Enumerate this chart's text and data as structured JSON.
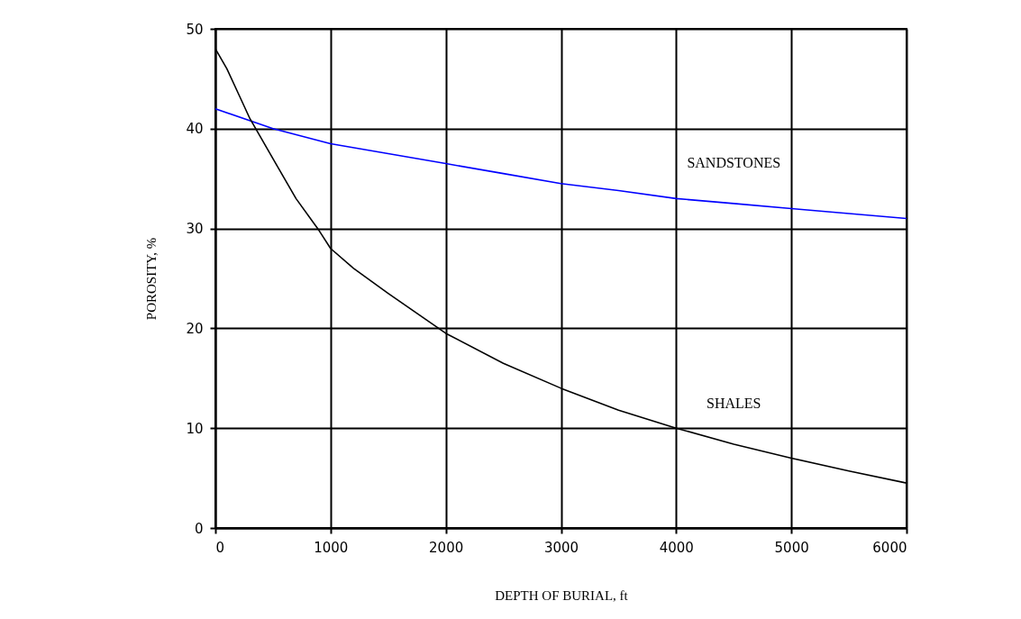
{
  "chart_data": {
    "type": "line",
    "xlabel": "DEPTH OF BURIAL, ft",
    "ylabel": "POROSITY, %",
    "xlim": [
      0,
      6000
    ],
    "ylim": [
      0,
      50
    ],
    "xticks": [
      0,
      1000,
      2000,
      3000,
      4000,
      5000,
      6000
    ],
    "yticks": [
      0,
      10,
      20,
      30,
      40,
      50
    ],
    "grid": true,
    "legend": false,
    "series": [
      {
        "name": "SANDSTONES",
        "color": "#0000ff",
        "x": [
          0,
          500,
          1000,
          1500,
          2000,
          2500,
          3000,
          3500,
          4000,
          4500,
          5000,
          5500,
          6000
        ],
        "values": [
          42,
          40,
          38.5,
          37.5,
          36.5,
          35.5,
          34.5,
          33.8,
          33,
          32.5,
          32,
          31.5,
          31
        ]
      },
      {
        "name": "SHALES",
        "color": "#000000",
        "x": [
          0,
          100,
          200,
          300,
          500,
          700,
          900,
          1000,
          1200,
          1500,
          2000,
          2500,
          3000,
          3500,
          4000,
          4500,
          5000,
          5500,
          6000
        ],
        "values": [
          48,
          46,
          43.5,
          41,
          37,
          33,
          29.8,
          28,
          26,
          23.5,
          19.5,
          16.5,
          14,
          11.8,
          10,
          8.4,
          7,
          5.7,
          4.5
        ]
      }
    ]
  }
}
